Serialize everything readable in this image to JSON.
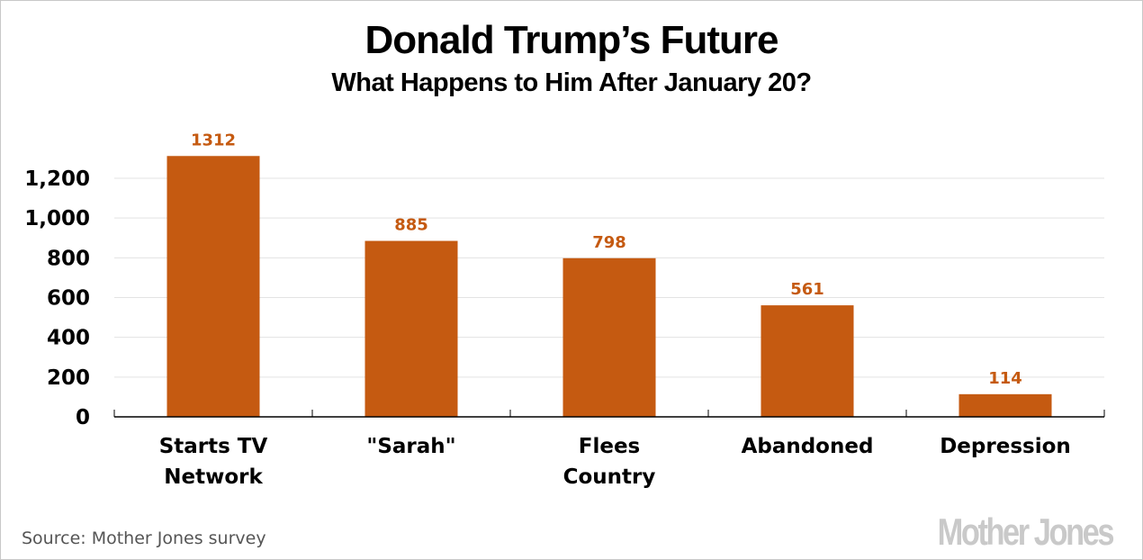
{
  "chart_data": {
    "type": "bar",
    "title": "Donald Trump’s Future",
    "subtitle": "What Happens to Him After January 20?",
    "categories": [
      [
        "Starts TV",
        "Network"
      ],
      [
        "\"Sarah\""
      ],
      [
        "Flees",
        "Country"
      ],
      [
        "Abandoned"
      ],
      [
        "Depression"
      ]
    ],
    "values": [
      1312,
      885,
      798,
      561,
      114
    ],
    "data_labels": [
      "1312",
      "885",
      "798",
      "561",
      "114"
    ],
    "xlabel": "",
    "ylabel": "",
    "ylim": [
      0,
      1200
    ],
    "yticks": [
      0,
      200,
      400,
      600,
      800,
      1000,
      1200
    ],
    "ytick_labels": [
      "0",
      "200",
      "400",
      "600",
      "800",
      "1,000",
      "1,200"
    ],
    "grid": true,
    "bar_color": "#c55a11",
    "label_color": "#c55a11",
    "source": "Source: Mother Jones survey",
    "brand": "Mother Jones"
  }
}
